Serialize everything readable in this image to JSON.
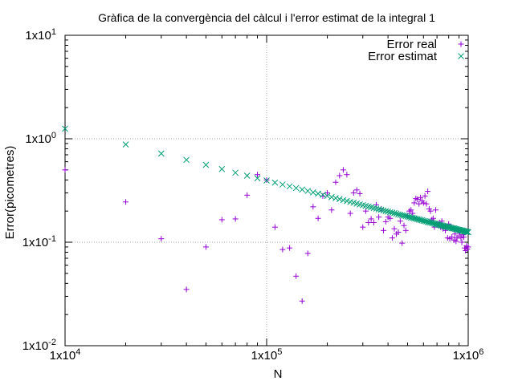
{
  "chart_data": {
    "type": "scatter",
    "title": "Gràfica de la convergència del càlcul i l'error estimat de la integral 1",
    "xlabel": "N",
    "ylabel": "Error(picometres)",
    "xscale": "log",
    "yscale": "log",
    "xlim": [
      10000,
      1000000
    ],
    "ylim": [
      0.01,
      10
    ],
    "grid": true,
    "legend_position": "top-right",
    "x_tick_labels": [
      {
        "value": 10000,
        "mantissa": "1x10",
        "exp": "4"
      },
      {
        "value": 100000,
        "mantissa": "1x10",
        "exp": "5"
      },
      {
        "value": 1000000,
        "mantissa": "1x10",
        "exp": "6"
      }
    ],
    "y_tick_labels": [
      {
        "value": 0.01,
        "mantissa": "1x10",
        "exp": "-2"
      },
      {
        "value": 0.1,
        "mantissa": "1x10",
        "exp": "-1"
      },
      {
        "value": 1,
        "mantissa": "1x10",
        "exp": "0"
      },
      {
        "value": 10,
        "mantissa": "1x10",
        "exp": "1"
      }
    ],
    "series": [
      {
        "name": "Error real",
        "marker": "plus",
        "color": "#9400D3",
        "points": [
          [
            10000,
            0.5
          ],
          [
            20000,
            0.245
          ],
          [
            30000,
            0.108
          ],
          [
            40000,
            0.035
          ],
          [
            50000,
            0.09
          ],
          [
            60000,
            0.165
          ],
          [
            70000,
            0.168
          ],
          [
            80000,
            0.285
          ],
          [
            90000,
            0.45
          ],
          [
            100000,
            0.4
          ],
          [
            110000,
            0.14
          ],
          [
            120000,
            0.085
          ],
          [
            130000,
            0.088
          ],
          [
            140000,
            0.047
          ],
          [
            150000,
            0.027
          ],
          [
            160000,
            0.078
          ],
          [
            170000,
            0.22
          ],
          [
            180000,
            0.17
          ],
          [
            190000,
            0.28
          ],
          [
            200000,
            0.3
          ],
          [
            210000,
            0.205
          ],
          [
            220000,
            0.38
          ],
          [
            230000,
            0.44
          ],
          [
            240000,
            0.5
          ],
          [
            250000,
            0.45
          ],
          [
            260000,
            0.19
          ],
          [
            270000,
            0.3
          ],
          [
            280000,
            0.32
          ],
          [
            290000,
            0.295
          ],
          [
            300000,
            0.14
          ],
          [
            310000,
            0.2
          ],
          [
            320000,
            0.155
          ],
          [
            330000,
            0.168
          ],
          [
            340000,
            0.155
          ],
          [
            350000,
            0.23
          ],
          [
            360000,
            0.175
          ],
          [
            370000,
            0.21
          ],
          [
            380000,
            0.13
          ],
          [
            390000,
            0.158
          ],
          [
            400000,
            0.175
          ],
          [
            410000,
            0.17
          ],
          [
            420000,
            0.11
          ],
          [
            430000,
            0.135
          ],
          [
            440000,
            0.12
          ],
          [
            450000,
            0.125
          ],
          [
            460000,
            0.16
          ],
          [
            470000,
            0.098
          ],
          [
            480000,
            0.145
          ],
          [
            490000,
            0.13
          ],
          [
            500000,
            0.18
          ],
          [
            510000,
            0.2
          ],
          [
            520000,
            0.205
          ],
          [
            530000,
            0.19
          ],
          [
            540000,
            0.24
          ],
          [
            550000,
            0.265
          ],
          [
            560000,
            0.26
          ],
          [
            570000,
            0.235
          ],
          [
            580000,
            0.27
          ],
          [
            590000,
            0.25
          ],
          [
            600000,
            0.24
          ],
          [
            610000,
            0.28
          ],
          [
            620000,
            0.235
          ],
          [
            630000,
            0.31
          ],
          [
            640000,
            0.21
          ],
          [
            650000,
            0.2
          ],
          [
            660000,
            0.165
          ],
          [
            670000,
            0.17
          ],
          [
            680000,
            0.14
          ],
          [
            690000,
            0.205
          ],
          [
            700000,
            0.15
          ],
          [
            710000,
            0.145
          ],
          [
            720000,
            0.155
          ],
          [
            730000,
            0.14
          ],
          [
            740000,
            0.16
          ],
          [
            750000,
            0.135
          ],
          [
            760000,
            0.145
          ],
          [
            770000,
            0.13
          ],
          [
            780000,
            0.14
          ],
          [
            790000,
            0.11
          ],
          [
            800000,
            0.15
          ],
          [
            810000,
            0.108
          ],
          [
            820000,
            0.14
          ],
          [
            830000,
            0.112
          ],
          [
            840000,
            0.135
          ],
          [
            850000,
            0.105
          ],
          [
            860000,
            0.12
          ],
          [
            870000,
            0.102
          ],
          [
            880000,
            0.11
          ],
          [
            890000,
            0.13
          ],
          [
            900000,
            0.115
          ],
          [
            910000,
            0.125
          ],
          [
            920000,
            0.11
          ],
          [
            930000,
            0.1
          ],
          [
            940000,
            0.118
          ],
          [
            950000,
            0.112
          ],
          [
            960000,
            0.088
          ],
          [
            970000,
            0.083
          ],
          [
            980000,
            0.092
          ],
          [
            990000,
            0.086
          ],
          [
            1000000,
            0.09
          ]
        ]
      },
      {
        "name": "Error estimat",
        "marker": "cross",
        "color": "#009E73",
        "points": [
          [
            10000,
            1.25
          ],
          [
            20000,
            0.88
          ],
          [
            30000,
            0.72
          ],
          [
            40000,
            0.625
          ],
          [
            50000,
            0.56
          ],
          [
            60000,
            0.51
          ],
          [
            70000,
            0.47
          ],
          [
            80000,
            0.44
          ],
          [
            90000,
            0.415
          ],
          [
            100000,
            0.395
          ],
          [
            110000,
            0.377
          ],
          [
            120000,
            0.361
          ],
          [
            130000,
            0.347
          ],
          [
            140000,
            0.334
          ],
          [
            150000,
            0.323
          ],
          [
            160000,
            0.313
          ],
          [
            170000,
            0.303
          ],
          [
            180000,
            0.295
          ],
          [
            190000,
            0.287
          ],
          [
            200000,
            0.28
          ],
          [
            210000,
            0.273
          ],
          [
            220000,
            0.267
          ],
          [
            230000,
            0.261
          ],
          [
            240000,
            0.255
          ],
          [
            250000,
            0.25
          ],
          [
            260000,
            0.245
          ],
          [
            270000,
            0.241
          ],
          [
            280000,
            0.236
          ],
          [
            290000,
            0.232
          ],
          [
            300000,
            0.228
          ],
          [
            310000,
            0.225
          ],
          [
            320000,
            0.221
          ],
          [
            330000,
            0.218
          ],
          [
            340000,
            0.214
          ],
          [
            350000,
            0.211
          ],
          [
            360000,
            0.208
          ],
          [
            370000,
            0.206
          ],
          [
            380000,
            0.203
          ],
          [
            390000,
            0.2
          ],
          [
            400000,
            0.198
          ],
          [
            410000,
            0.195
          ],
          [
            420000,
            0.193
          ],
          [
            430000,
            0.191
          ],
          [
            440000,
            0.189
          ],
          [
            450000,
            0.186
          ],
          [
            460000,
            0.184
          ],
          [
            470000,
            0.182
          ],
          [
            480000,
            0.181
          ],
          [
            490000,
            0.179
          ],
          [
            500000,
            0.177
          ],
          [
            510000,
            0.175
          ],
          [
            520000,
            0.173
          ],
          [
            530000,
            0.172
          ],
          [
            540000,
            0.17
          ],
          [
            550000,
            0.169
          ],
          [
            560000,
            0.167
          ],
          [
            570000,
            0.166
          ],
          [
            580000,
            0.164
          ],
          [
            590000,
            0.163
          ],
          [
            600000,
            0.161
          ],
          [
            610000,
            0.16
          ],
          [
            620000,
            0.159
          ],
          [
            630000,
            0.157
          ],
          [
            640000,
            0.156
          ],
          [
            650000,
            0.155
          ],
          [
            660000,
            0.154
          ],
          [
            670000,
            0.153
          ],
          [
            680000,
            0.152
          ],
          [
            690000,
            0.15
          ],
          [
            700000,
            0.149
          ],
          [
            710000,
            0.148
          ],
          [
            720000,
            0.147
          ],
          [
            730000,
            0.146
          ],
          [
            740000,
            0.145
          ],
          [
            750000,
            0.144
          ],
          [
            760000,
            0.143
          ],
          [
            770000,
            0.142
          ],
          [
            780000,
            0.141
          ],
          [
            790000,
            0.141
          ],
          [
            800000,
            0.14
          ],
          [
            810000,
            0.139
          ],
          [
            820000,
            0.138
          ],
          [
            830000,
            0.137
          ],
          [
            840000,
            0.136
          ],
          [
            850000,
            0.136
          ],
          [
            860000,
            0.135
          ],
          [
            870000,
            0.134
          ],
          [
            880000,
            0.133
          ],
          [
            890000,
            0.132
          ],
          [
            900000,
            0.132
          ],
          [
            910000,
            0.131
          ],
          [
            920000,
            0.13
          ],
          [
            930000,
            0.13
          ],
          [
            940000,
            0.129
          ],
          [
            950000,
            0.128
          ],
          [
            960000,
            0.128
          ],
          [
            970000,
            0.127
          ],
          [
            980000,
            0.126
          ],
          [
            990000,
            0.126
          ],
          [
            1000000,
            0.125
          ]
        ]
      }
    ]
  }
}
